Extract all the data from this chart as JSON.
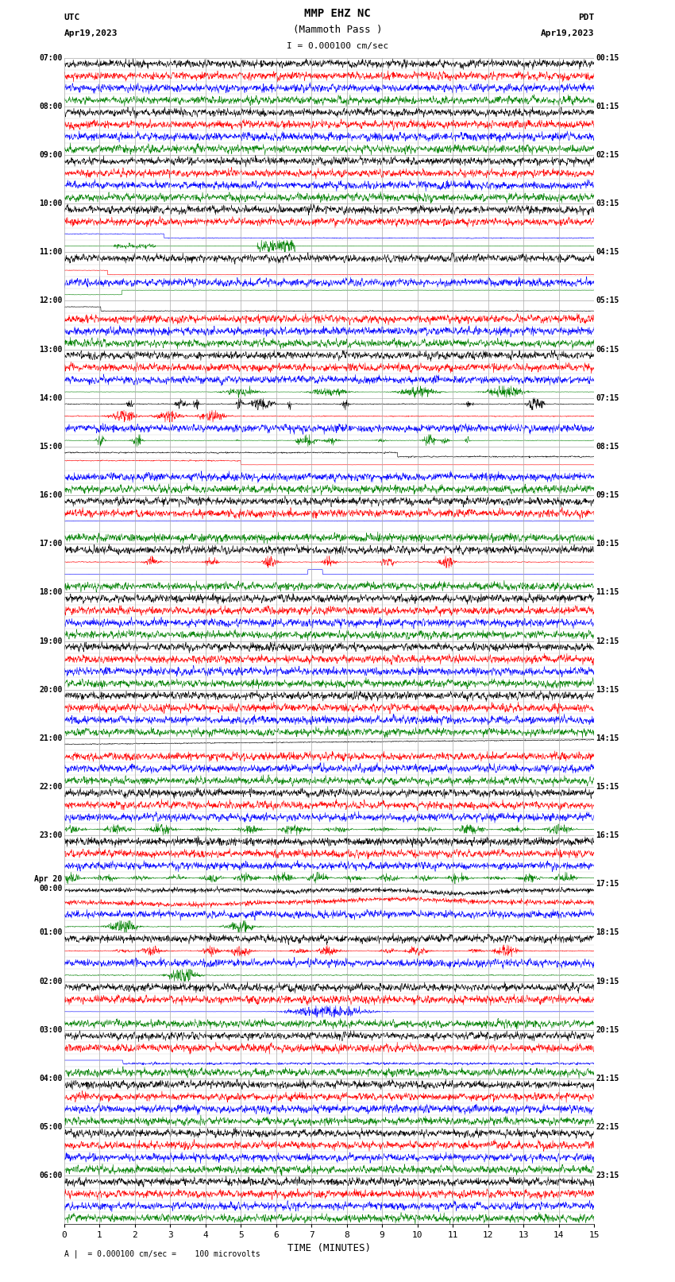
{
  "title_line1": "MMP EHZ NC",
  "title_line2": "(Mammoth Pass )",
  "title_line3": "I = 0.000100 cm/sec",
  "left_label_top": "UTC",
  "left_label_date": "Apr19,2023",
  "right_label_top": "PDT",
  "right_label_date": "Apr19,2023",
  "bottom_label": "TIME (MINUTES)",
  "footnote": "A |  = 0.000100 cm/sec =    100 microvolts",
  "xlabel_ticks": [
    0,
    1,
    2,
    3,
    4,
    5,
    6,
    7,
    8,
    9,
    10,
    11,
    12,
    13,
    14,
    15
  ],
  "bg_color": "#ffffff",
  "grid_color": "#aaaaaa",
  "trace_colors": [
    "black",
    "red",
    "blue",
    "green"
  ],
  "utc_labels": [
    "07:00",
    "08:00",
    "09:00",
    "10:00",
    "11:00",
    "12:00",
    "13:00",
    "14:00",
    "15:00",
    "16:00",
    "17:00",
    "18:00",
    "19:00",
    "20:00",
    "21:00",
    "22:00",
    "23:00",
    "Apr 20\n00:00",
    "01:00",
    "02:00",
    "03:00",
    "04:00",
    "05:00",
    "06:00"
  ],
  "pdt_labels": [
    "00:15",
    "01:15",
    "02:15",
    "03:15",
    "04:15",
    "05:15",
    "06:15",
    "07:15",
    "08:15",
    "09:15",
    "10:15",
    "11:15",
    "12:15",
    "13:15",
    "14:15",
    "15:15",
    "16:15",
    "17:15",
    "18:15",
    "19:15",
    "20:15",
    "21:15",
    "22:15",
    "23:15"
  ],
  "n_hour_rows": 24,
  "traces_per_hour": 4,
  "fig_width": 8.5,
  "fig_height": 16.13,
  "lw": 0.4
}
